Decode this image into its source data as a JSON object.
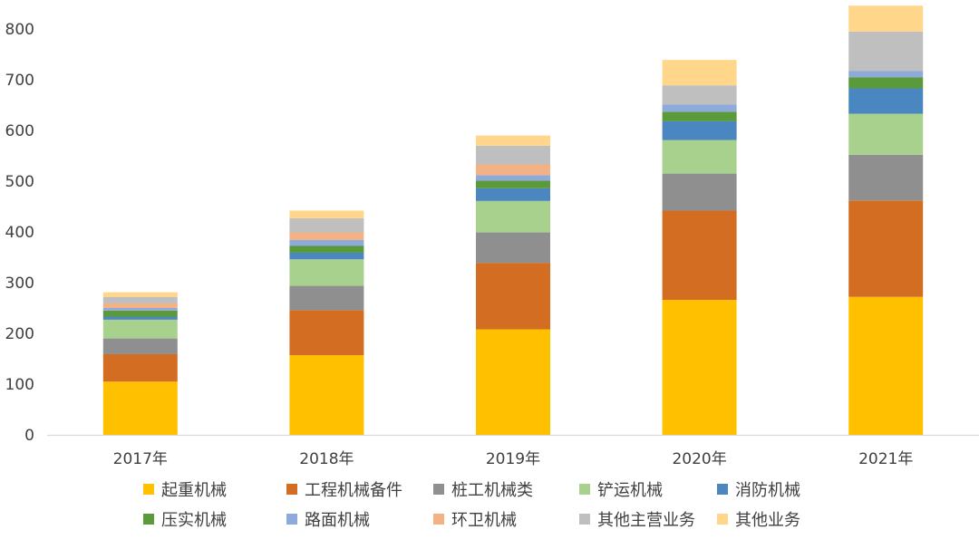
{
  "chart_data": {
    "type": "bar",
    "stacked": true,
    "categories": [
      "2017年",
      "2018年",
      "2019年",
      "2020年",
      "2021年"
    ],
    "ylim": [
      0,
      800
    ],
    "yticks": [
      0,
      100,
      200,
      300,
      400,
      500,
      600,
      700,
      800
    ],
    "grid": false,
    "legend_position": "bottom",
    "series": [
      {
        "name": "起重机械",
        "color": "#FFC000",
        "values": [
          105,
          157,
          208,
          266,
          272
        ]
      },
      {
        "name": "工程机械备件",
        "color": "#D26D22",
        "values": [
          54,
          89,
          131,
          176,
          190
        ]
      },
      {
        "name": "桩工机械类",
        "color": "#8F8F8F",
        "values": [
          31,
          48,
          60,
          73,
          90
        ]
      },
      {
        "name": "铲运机械",
        "color": "#A9D18E",
        "values": [
          37,
          52,
          62,
          66,
          81
        ]
      },
      {
        "name": "消防机械",
        "color": "#4A86C0",
        "values": [
          6,
          13,
          25,
          37,
          50
        ]
      },
      {
        "name": "压实机械",
        "color": "#5B9A3B",
        "values": [
          12,
          14,
          15,
          19,
          22
        ]
      },
      {
        "name": "路面机械",
        "color": "#8EA9DB",
        "values": [
          5,
          11,
          11,
          14,
          12
        ]
      },
      {
        "name": "环卫机械",
        "color": "#F4B183",
        "values": [
          9,
          15,
          21,
          0,
          0
        ]
      },
      {
        "name": "其他主营业务",
        "color": "#BFBFBF",
        "values": [
          13,
          28,
          37,
          38,
          78
        ]
      },
      {
        "name": "其他业务",
        "color": "#FFD68A",
        "values": [
          9,
          15,
          20,
          50,
          51
        ]
      }
    ]
  }
}
